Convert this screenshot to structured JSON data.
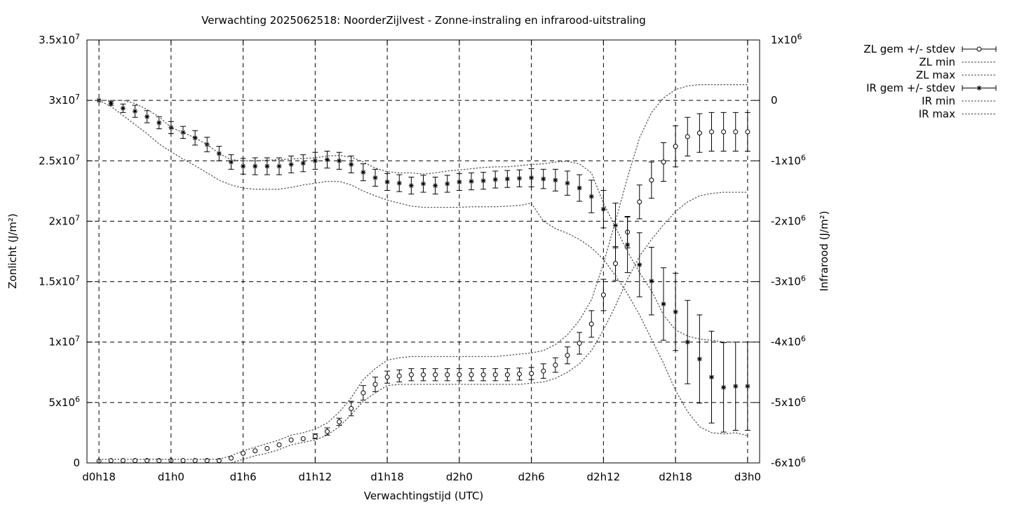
{
  "chart_data": {
    "type": "line",
    "title": "Verwachting 2025062518: NoorderZijlvest - Zonne-instraling en infrarood-uitstraling",
    "xlabel": "Verwachtingstijd (UTC)",
    "ylabel": "Zonlicht (J/m²)",
    "y2label": "Infrarood (J/m²)",
    "x_unit": "hours since d0h18",
    "xlim": [
      -1,
      55
    ],
    "ylim": [
      0,
      35000000
    ],
    "y2lim": [
      -6000000,
      1000000
    ],
    "grid": true,
    "legend_position": "top-right, outside plot",
    "x_ticks": [
      {
        "x": 0,
        "label": "d0h18"
      },
      {
        "x": 6,
        "label": "d1h0"
      },
      {
        "x": 12,
        "label": "d1h6"
      },
      {
        "x": 18,
        "label": "d1h12"
      },
      {
        "x": 24,
        "label": "d1h18"
      },
      {
        "x": 30,
        "label": "d2h0"
      },
      {
        "x": 36,
        "label": "d2h6"
      },
      {
        "x": 42,
        "label": "d2h12"
      },
      {
        "x": 48,
        "label": "d2h18"
      },
      {
        "x": 54,
        "label": "d3h0"
      }
    ],
    "y_ticks": [
      {
        "value": 0,
        "mant": "0",
        "exp": ""
      },
      {
        "value": 5000000,
        "mant": "5x10",
        "exp": "6"
      },
      {
        "value": 10000000,
        "mant": "1x10",
        "exp": "7"
      },
      {
        "value": 15000000,
        "mant": "1.5x10",
        "exp": "7"
      },
      {
        "value": 20000000,
        "mant": "2x10",
        "exp": "7"
      },
      {
        "value": 25000000,
        "mant": "2.5x10",
        "exp": "7"
      },
      {
        "value": 30000000,
        "mant": "3x10",
        "exp": "7"
      },
      {
        "value": 35000000,
        "mant": "3.5x10",
        "exp": "7"
      }
    ],
    "y2_ticks": [
      {
        "value": -6000000,
        "mant": "-6x10",
        "exp": "6"
      },
      {
        "value": -5000000,
        "mant": "-5x10",
        "exp": "6"
      },
      {
        "value": -4000000,
        "mant": "-4x10",
        "exp": "6"
      },
      {
        "value": -3000000,
        "mant": "-3x10",
        "exp": "6"
      },
      {
        "value": -2000000,
        "mant": "-2x10",
        "exp": "6"
      },
      {
        "value": -1000000,
        "mant": "-1x10",
        "exp": "6"
      },
      {
        "value": 0,
        "mant": "0",
        "exp": ""
      },
      {
        "value": 1000000,
        "mant": "1x10",
        "exp": "6"
      }
    ],
    "x": [
      0,
      1,
      2,
      3,
      4,
      5,
      6,
      7,
      8,
      9,
      10,
      11,
      12,
      13,
      14,
      15,
      16,
      17,
      18,
      19,
      20,
      21,
      22,
      23,
      24,
      25,
      26,
      27,
      28,
      29,
      30,
      31,
      32,
      33,
      34,
      35,
      36,
      37,
      38,
      39,
      40,
      41,
      42,
      43,
      44,
      45,
      46,
      47,
      48,
      49,
      50,
      51,
      52,
      53,
      54
    ],
    "series": [
      {
        "name": "ZL gem +/- stdev",
        "axis": "y",
        "marker": "circle",
        "values": [
          0.15,
          0.2,
          0.2,
          0.2,
          0.2,
          0.2,
          0.2,
          0.2,
          0.2,
          0.2,
          0.2,
          0.4,
          0.8,
          1.0,
          1.2,
          1.5,
          1.9,
          2.0,
          2.2,
          2.6,
          3.4,
          4.5,
          5.8,
          6.5,
          7.1,
          7.2,
          7.3,
          7.3,
          7.3,
          7.3,
          7.3,
          7.3,
          7.3,
          7.3,
          7.3,
          7.35,
          7.4,
          7.6,
          8.1,
          8.9,
          9.9,
          11.5,
          13.9,
          16.5,
          19.1,
          21.6,
          23.4,
          24.9,
          26.2,
          27.0,
          27.3,
          27.4,
          27.4,
          27.4,
          27.4
        ],
        "stdev": [
          0,
          0,
          0,
          0,
          0,
          0,
          0,
          0,
          0,
          0,
          0,
          0,
          0,
          0,
          0,
          0,
          0,
          0,
          0.2,
          0.3,
          0.3,
          0.6,
          0.6,
          0.6,
          0.5,
          0.5,
          0.5,
          0.5,
          0.5,
          0.5,
          0.5,
          0.5,
          0.5,
          0.5,
          0.5,
          0.5,
          0.5,
          0.6,
          0.6,
          0.7,
          0.9,
          1.1,
          1.3,
          1.4,
          1.3,
          1.4,
          1.5,
          1.6,
          1.7,
          1.6,
          1.6,
          1.6,
          1.6,
          1.6,
          1.6
        ],
        "scale": 1000000
      },
      {
        "name": "ZL min",
        "axis": "y",
        "style": "dotted",
        "values": [
          0,
          0,
          0,
          0,
          0,
          0,
          0,
          0,
          0,
          0,
          0,
          0,
          0.3,
          0.6,
          0.8,
          1.1,
          1.5,
          1.7,
          1.9,
          2.3,
          3.0,
          4.0,
          5.1,
          5.8,
          6.4,
          6.5,
          6.5,
          6.5,
          6.5,
          6.5,
          6.5,
          6.5,
          6.5,
          6.5,
          6.5,
          6.5,
          6.6,
          6.7,
          7.0,
          7.5,
          8.2,
          9.3,
          11.0,
          13.0,
          15.2,
          17.1,
          18.5,
          19.7,
          20.8,
          21.6,
          22.1,
          22.3,
          22.4,
          22.4,
          22.4
        ],
        "scale": 1000000
      },
      {
        "name": "ZL max",
        "axis": "y",
        "style": "dotted",
        "values": [
          0.3,
          0.3,
          0.3,
          0.3,
          0.3,
          0.3,
          0.3,
          0.3,
          0.3,
          0.3,
          0.3,
          0.6,
          1.0,
          1.3,
          1.6,
          1.9,
          2.3,
          2.5,
          2.8,
          3.3,
          4.2,
          5.4,
          6.9,
          7.8,
          8.5,
          8.7,
          8.8,
          8.8,
          8.8,
          8.8,
          8.8,
          8.8,
          8.8,
          8.8,
          8.9,
          9.0,
          9.1,
          9.3,
          9.8,
          10.6,
          11.8,
          13.5,
          16.5,
          20.0,
          23.6,
          26.9,
          29.0,
          30.2,
          30.9,
          31.2,
          31.3,
          31.3,
          31.3,
          31.3,
          31.3
        ],
        "scale": 1000000
      },
      {
        "name": "IR gem +/- stdev",
        "axis": "y2",
        "marker": "star",
        "values": [
          0.0,
          -0.05,
          -0.13,
          -0.18,
          -0.27,
          -0.37,
          -0.45,
          -0.53,
          -0.62,
          -0.73,
          -0.88,
          -1.02,
          -1.09,
          -1.09,
          -1.09,
          -1.09,
          -1.06,
          -1.04,
          -1.0,
          -0.98,
          -1.0,
          -1.06,
          -1.19,
          -1.28,
          -1.35,
          -1.37,
          -1.41,
          -1.38,
          -1.41,
          -1.38,
          -1.35,
          -1.34,
          -1.33,
          -1.31,
          -1.3,
          -1.29,
          -1.28,
          -1.3,
          -1.32,
          -1.37,
          -1.45,
          -1.59,
          -1.8,
          -2.07,
          -2.39,
          -2.72,
          -2.99,
          -3.37,
          -3.5,
          -4.0,
          -4.28,
          -4.58,
          -4.75,
          -4.73,
          -4.73
        ],
        "stdev": [
          0.0,
          0.03,
          0.07,
          0.1,
          0.1,
          0.1,
          0.1,
          0.1,
          0.12,
          0.12,
          0.12,
          0.12,
          0.13,
          0.14,
          0.14,
          0.14,
          0.14,
          0.14,
          0.14,
          0.14,
          0.14,
          0.14,
          0.14,
          0.14,
          0.14,
          0.14,
          0.14,
          0.14,
          0.14,
          0.14,
          0.14,
          0.14,
          0.14,
          0.14,
          0.14,
          0.14,
          0.15,
          0.16,
          0.18,
          0.2,
          0.22,
          0.27,
          0.31,
          0.37,
          0.46,
          0.53,
          0.56,
          0.6,
          0.64,
          0.69,
          0.73,
          0.76,
          0.74,
          0.73,
          0.73
        ],
        "scale": 1000000
      },
      {
        "name": "IR min",
        "axis": "y2",
        "style": "dotted",
        "values": [
          0.0,
          -0.1,
          -0.25,
          -0.4,
          -0.55,
          -0.72,
          -0.85,
          -0.97,
          -1.08,
          -1.2,
          -1.32,
          -1.4,
          -1.45,
          -1.47,
          -1.47,
          -1.47,
          -1.44,
          -1.4,
          -1.37,
          -1.34,
          -1.34,
          -1.4,
          -1.5,
          -1.58,
          -1.65,
          -1.7,
          -1.75,
          -1.77,
          -1.77,
          -1.77,
          -1.77,
          -1.76,
          -1.76,
          -1.76,
          -1.75,
          -1.74,
          -1.7,
          -2.0,
          -2.12,
          -2.2,
          -2.3,
          -2.44,
          -2.63,
          -2.9,
          -3.2,
          -3.55,
          -3.95,
          -4.35,
          -4.8,
          -5.15,
          -5.4,
          -5.5,
          -5.52,
          -5.5,
          -5.55
        ],
        "scale": 1000000
      },
      {
        "name": "IR max",
        "axis": "y2",
        "style": "dotted",
        "values": [
          0.0,
          0.0,
          0.0,
          -0.05,
          -0.15,
          -0.27,
          -0.45,
          -0.53,
          -0.62,
          -0.73,
          -0.88,
          -0.98,
          -1.0,
          -1.0,
          -0.99,
          -0.98,
          -0.97,
          -0.96,
          -0.95,
          -0.92,
          -0.91,
          -0.94,
          -1.02,
          -1.12,
          -1.18,
          -1.2,
          -1.2,
          -1.22,
          -1.2,
          -1.17,
          -1.15,
          -1.13,
          -1.11,
          -1.1,
          -1.1,
          -1.08,
          -1.06,
          -1.05,
          -1.02,
          -1.01,
          -1.05,
          -1.2,
          -1.7,
          -2.1,
          -2.5,
          -2.85,
          -3.15,
          -3.55,
          -3.8,
          -3.9,
          -3.95,
          -3.97,
          -4.0,
          -4.0,
          -4.0
        ],
        "scale": 1000000
      }
    ]
  }
}
